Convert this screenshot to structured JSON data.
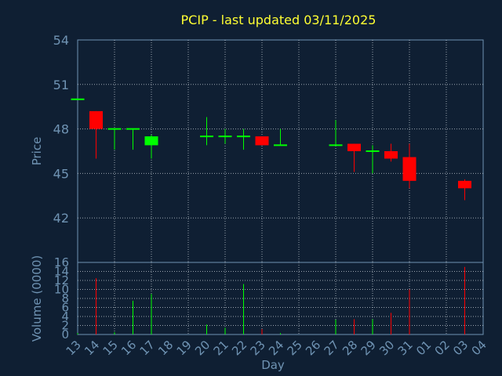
{
  "chart_data": {
    "type": "candlestick",
    "title": "PCIP - last updated 03/11/2025",
    "xlabel": "Day",
    "price_ylabel": "Price",
    "volume_ylabel": "Volume (0000)",
    "price_ylim": [
      39,
      54
    ],
    "price_yticks": [
      "54",
      "51",
      "48",
      "45",
      "42"
    ],
    "volume_ylim": [
      0,
      16
    ],
    "volume_yticks": [
      "16",
      "14",
      "12",
      "10",
      "8",
      "6",
      "4",
      "2",
      "0"
    ],
    "x_ticks": [
      "13",
      "14",
      "15",
      "16",
      "17",
      "18",
      "19",
      "20",
      "21",
      "22",
      "23",
      "24",
      "25",
      "26",
      "27",
      "28",
      "29",
      "30",
      "31",
      "01",
      "02",
      "03",
      "04"
    ],
    "grid": true,
    "colors": {
      "up": "#00ff00",
      "down": "#ff0000",
      "grid": "#c8d0d8",
      "frame": "#6f93b3",
      "title": "#ffff33"
    },
    "candles": [
      {
        "day": "13",
        "open": 50.0,
        "high": 50.0,
        "low": 50.0,
        "close": 50.0,
        "volume": 0.3
      },
      {
        "day": "14",
        "open": 49.2,
        "high": 49.2,
        "low": 46.0,
        "close": 48.0,
        "volume": 12.5
      },
      {
        "day": "15",
        "open": 48.0,
        "high": 48.0,
        "low": 46.6,
        "close": 48.0,
        "volume": 0.5
      },
      {
        "day": "16",
        "open": 48.0,
        "high": 48.0,
        "low": 46.6,
        "close": 48.0,
        "volume": 7.5
      },
      {
        "day": "17",
        "open": 46.9,
        "high": 47.6,
        "low": 46.0,
        "close": 47.5,
        "volume": 9.0
      },
      {
        "day": "20",
        "open": 47.5,
        "high": 48.8,
        "low": 46.9,
        "close": 47.5,
        "volume": 2.2
      },
      {
        "day": "21",
        "open": 47.5,
        "high": 48.0,
        "low": 47.0,
        "close": 47.5,
        "volume": 1.5
      },
      {
        "day": "22",
        "open": 47.5,
        "high": 48.0,
        "low": 46.6,
        "close": 47.5,
        "volume": 11.2
      },
      {
        "day": "23",
        "open": 47.5,
        "high": 47.5,
        "low": 46.9,
        "close": 46.9,
        "volume": 1.2
      },
      {
        "day": "24",
        "open": 46.9,
        "high": 48.0,
        "low": 46.9,
        "close": 46.9,
        "volume": 0.3
      },
      {
        "day": "27",
        "open": 46.9,
        "high": 48.6,
        "low": 46.9,
        "close": 46.9,
        "volume": 3.3
      },
      {
        "day": "28",
        "open": 47.0,
        "high": 47.0,
        "low": 45.1,
        "close": 46.5,
        "volume": 3.4
      },
      {
        "day": "29",
        "open": 46.5,
        "high": 46.9,
        "low": 45.0,
        "close": 46.5,
        "volume": 3.4
      },
      {
        "day": "30",
        "open": 46.5,
        "high": 47.0,
        "low": 45.8,
        "close": 46.0,
        "volume": 4.8
      },
      {
        "day": "31",
        "open": 46.1,
        "high": 47.0,
        "low": 44.0,
        "close": 44.5,
        "volume": 10.0
      },
      {
        "day": "03",
        "open": 44.5,
        "high": 44.6,
        "low": 43.2,
        "close": 44.0,
        "volume": 15.0
      }
    ]
  }
}
